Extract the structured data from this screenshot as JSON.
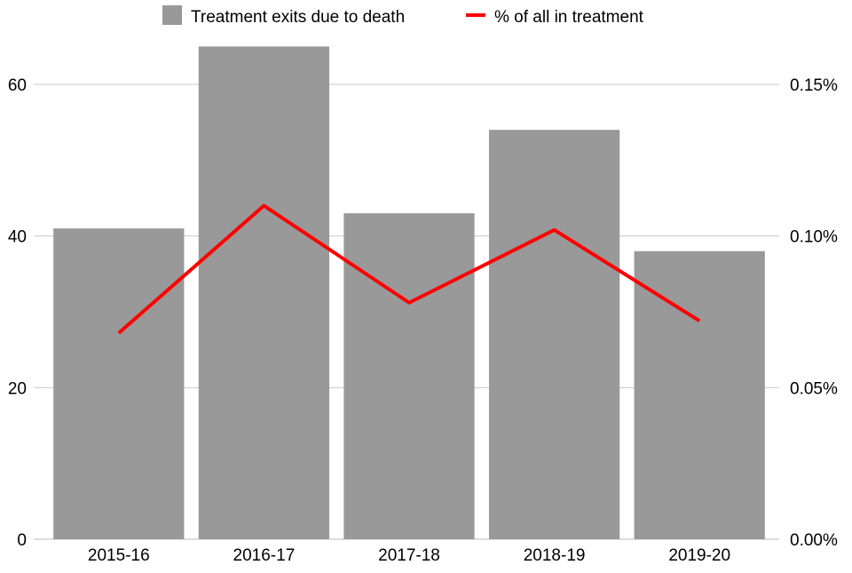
{
  "chart_data": {
    "type": "bar",
    "title": "",
    "xlabel": "",
    "ylabel": "",
    "categories": [
      "2015-16",
      "2016-17",
      "2017-18",
      "2018-19",
      "2019-20"
    ],
    "series": [
      {
        "name": "Treatment exits due to death",
        "type": "bar",
        "axis": "left",
        "color": "#999999",
        "values": [
          41,
          65,
          43,
          54,
          38
        ]
      },
      {
        "name": "% of all in treatment",
        "type": "line",
        "axis": "right",
        "color": "#ff0000",
        "values": [
          0.068,
          0.11,
          0.078,
          0.102,
          0.072
        ]
      }
    ],
    "ylim": [
      0,
      70
    ],
    "y_ticks": [
      0,
      20,
      40,
      60
    ],
    "y_tick_labels": [
      "0",
      "20",
      "40",
      "60"
    ],
    "y2lim": [
      0,
      0.175
    ],
    "y2_ticks": [
      0,
      0.05,
      0.1,
      0.15
    ],
    "y2_tick_labels": [
      "0.00%",
      "0.05%",
      "0.10%",
      "0.15%"
    ],
    "grid": true,
    "legend": "top-center"
  }
}
